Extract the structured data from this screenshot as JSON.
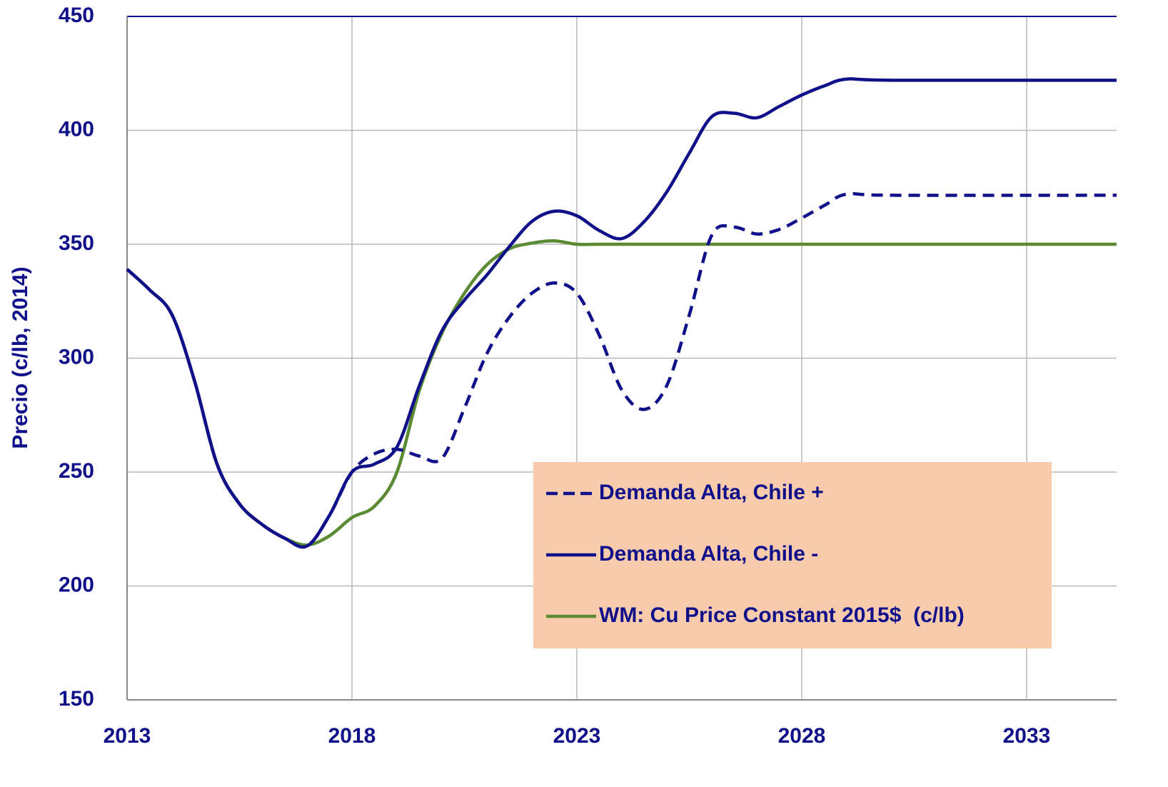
{
  "chart_data": {
    "type": "line",
    "y_label": "Precio (c/lb, 2014)",
    "x": [
      2013,
      2013.5,
      2014,
      2014.5,
      2015,
      2015.5,
      2016,
      2016.5,
      2017,
      2017.5,
      2018,
      2018.5,
      2019,
      2019.5,
      2020,
      2020.5,
      2021,
      2021.5,
      2022,
      2022.5,
      2023,
      2023.5,
      2024,
      2024.5,
      2025,
      2025.5,
      2026,
      2026.5,
      2027,
      2027.5,
      2028,
      2028.5,
      2029,
      2030,
      2035
    ],
    "series": [
      {
        "name": "Demanda Alta, Chile +",
        "color": "#10108a",
        "dashed": true,
        "values": [
          339,
          330,
          319,
          290,
          253.5,
          236,
          227,
          221,
          217.5,
          231,
          250,
          258,
          260,
          257,
          256,
          278,
          302,
          318,
          328.5,
          333,
          328.5,
          310,
          286,
          277.5,
          288,
          319,
          354,
          357.5,
          354.5,
          356.5,
          361.5,
          367,
          372,
          371.5,
          371.5
        ]
      },
      {
        "name": "Demanda Alta, Chile -",
        "color": "#10108a",
        "dashed": false,
        "values": [
          339,
          330,
          319,
          290,
          253.5,
          236,
          227,
          221,
          217.5,
          231,
          250,
          253.5,
          261,
          288,
          312,
          325.5,
          336.5,
          349,
          360,
          364.5,
          362.5,
          356,
          352.5,
          360,
          373,
          390,
          406,
          407.5,
          405.5,
          410.5,
          415.5,
          419.5,
          422.5,
          422,
          422
        ]
      },
      {
        "name": "WM: Cu Price Constant 2015$  (c/lb)",
        "color": "#5a8a32",
        "dashed": false,
        "values": [
          339,
          330,
          319,
          290,
          253.5,
          236,
          227,
          221,
          218,
          222,
          230,
          235,
          250,
          286,
          311,
          328.5,
          341,
          348,
          350.5,
          351.5,
          350,
          350,
          350,
          350,
          350,
          350,
          350,
          350,
          350,
          350,
          350,
          350,
          350,
          350,
          350
        ]
      }
    ],
    "xlim": [
      2013,
      2035
    ],
    "xticks": [
      2013,
      2018,
      2023,
      2028,
      2033
    ],
    "ylim": [
      150,
      450
    ],
    "yticks": [
      150,
      200,
      250,
      300,
      350,
      400,
      450
    ],
    "grid": true,
    "legend_position": "lower right",
    "legend_color": "#f8cbad"
  }
}
